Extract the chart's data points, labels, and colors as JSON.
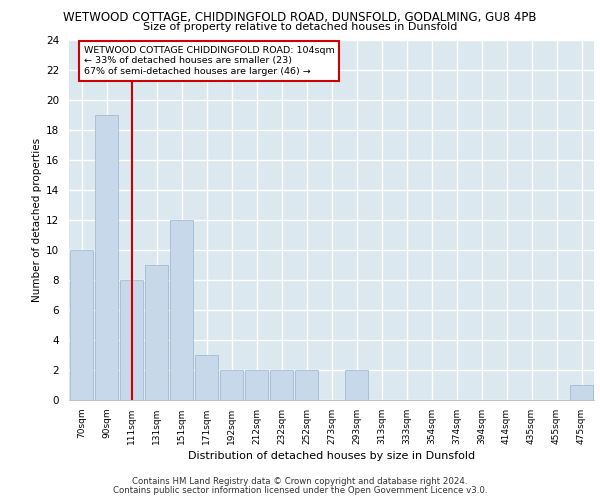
{
  "title1": "WETWOOD COTTAGE, CHIDDINGFOLD ROAD, DUNSFOLD, GODALMING, GU8 4PB",
  "title2": "Size of property relative to detached houses in Dunsfold",
  "xlabel": "Distribution of detached houses by size in Dunsfold",
  "ylabel": "Number of detached properties",
  "categories": [
    "70sqm",
    "90sqm",
    "111sqm",
    "131sqm",
    "151sqm",
    "171sqm",
    "192sqm",
    "212sqm",
    "232sqm",
    "252sqm",
    "273sqm",
    "293sqm",
    "313sqm",
    "333sqm",
    "354sqm",
    "374sqm",
    "394sqm",
    "414sqm",
    "435sqm",
    "455sqm",
    "475sqm"
  ],
  "values": [
    10,
    19,
    8,
    9,
    12,
    3,
    2,
    2,
    2,
    2,
    0,
    2,
    0,
    0,
    0,
    0,
    0,
    0,
    0,
    0,
    1
  ],
  "bar_color": "#c6d8ea",
  "bar_edge_color": "#9ab4cc",
  "vline_x_index": 2,
  "vline_color": "#cc0000",
  "annotation_text": "WETWOOD COTTAGE CHIDDINGFOLD ROAD: 104sqm\n← 33% of detached houses are smaller (23)\n67% of semi-detached houses are larger (46) →",
  "annotation_box_edge": "#cc0000",
  "ylim": [
    0,
    24
  ],
  "yticks": [
    0,
    2,
    4,
    6,
    8,
    10,
    12,
    14,
    16,
    18,
    20,
    22,
    24
  ],
  "bg_color": "#dce8f0",
  "grid_color": "#ffffff",
  "footer1": "Contains HM Land Registry data © Crown copyright and database right 2024.",
  "footer2": "Contains public sector information licensed under the Open Government Licence v3.0."
}
